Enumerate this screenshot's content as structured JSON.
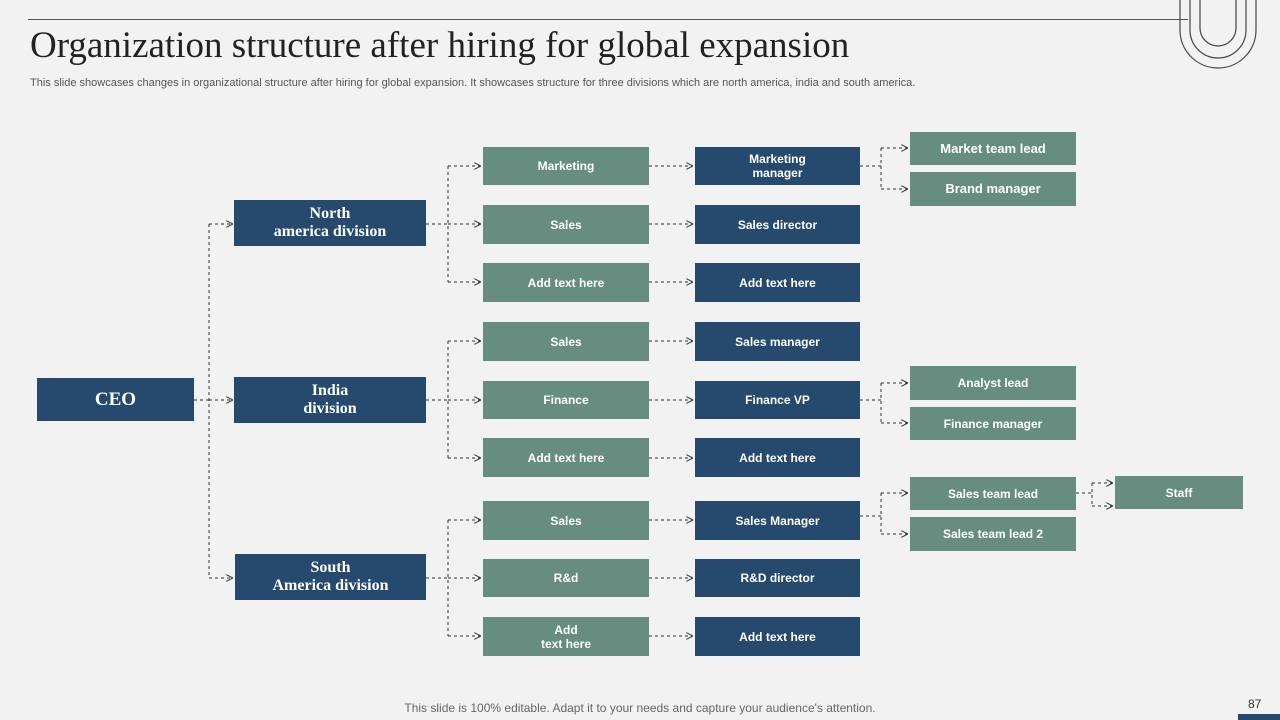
{
  "slide": {
    "title": "Organization structure after hiring for global expansion",
    "subtitle": "This slide showcases changes in organizational structure after hiring for global expansion. It showcases structure for three divisions which are north america, india and south america.",
    "footer": "This slide is 100% editable. Adapt it to your needs and capture your audience's attention.",
    "page_number": "87"
  },
  "org": {
    "ceo": "CEO",
    "divisions": [
      {
        "label": "North\namerica division",
        "departments": [
          {
            "label": "Marketing",
            "role": "Marketing\nmanager",
            "reports": [
              "Market team lead",
              "Brand manager"
            ]
          },
          {
            "label": "Sales",
            "role": "Sales director",
            "reports": []
          },
          {
            "label": "Add  text here",
            "role": "Add  text here",
            "reports": []
          }
        ]
      },
      {
        "label": "India\ndivision",
        "departments": [
          {
            "label": "Sales",
            "role": "Sales manager",
            "reports": []
          },
          {
            "label": "Finance",
            "role": "Finance  VP",
            "reports": [
              "Analyst  lead",
              "Finance  manager"
            ]
          },
          {
            "label": "Add  text here",
            "role": "Add  text here",
            "reports": []
          }
        ]
      },
      {
        "label": "South\nAmerica division",
        "departments": [
          {
            "label": "Sales",
            "role": "Sales Manager",
            "reports": [
              "Sales team lead",
              "Sales team lead 2"
            ]
          },
          {
            "label": "R&d",
            "role": "R&D director",
            "reports": []
          },
          {
            "label": "Add\ntext here",
            "role": "Add  text here",
            "reports": []
          }
        ]
      }
    ],
    "staff": "Staff"
  },
  "colors": {
    "navy": "#264a6e",
    "green": "#678c80",
    "connector": "#333333"
  }
}
